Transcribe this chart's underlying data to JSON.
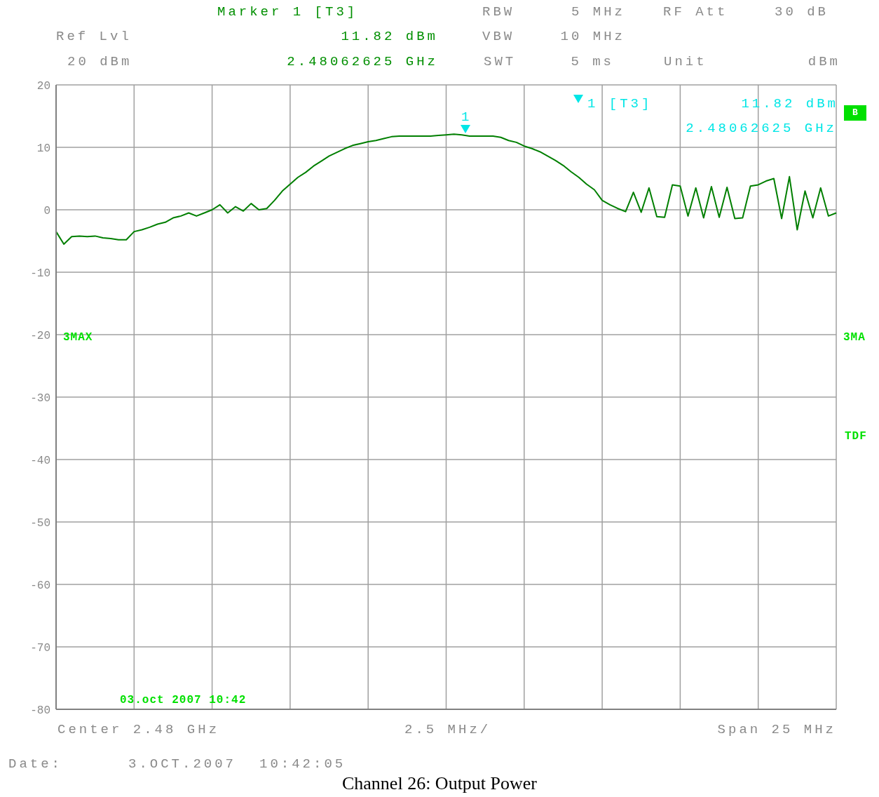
{
  "chart_data": {
    "type": "line",
    "title": "Channel 26: Output Power",
    "categories": [
      null,
      null,
      null,
      null,
      null,
      null,
      null,
      null,
      null,
      null,
      null,
      null,
      null,
      null,
      null,
      null,
      null,
      null,
      null,
      null,
      null,
      null,
      null,
      null,
      null,
      null,
      null,
      null,
      null,
      null,
      null,
      null,
      null,
      null,
      null,
      null,
      null,
      null,
      null,
      null,
      null,
      null,
      null,
      null,
      null,
      null,
      null,
      null,
      null,
      null,
      null,
      null,
      null,
      null,
      null,
      null,
      null,
      null,
      null,
      null,
      null,
      null,
      null,
      null,
      null,
      null,
      null,
      null,
      null,
      null,
      null,
      null,
      null,
      null,
      null,
      null,
      null,
      null,
      null,
      null,
      null,
      null,
      null,
      null,
      null,
      null,
      null,
      null,
      null,
      null,
      null,
      null,
      null,
      null,
      null,
      null,
      null,
      null,
      null,
      null,
      null
    ],
    "series": [
      {
        "color": "#007f00",
        "values": [
          -3.5,
          -5.5,
          -4.3,
          -4.2,
          -4.3,
          -4.2,
          -4.5,
          -4.6,
          -4.8,
          -4.8,
          -3.5,
          -3.2,
          -2.8,
          -2.3,
          -2,
          -1.3,
          -1,
          -0.5,
          -1,
          -0.5,
          0,
          0.8,
          -0.5,
          0.5,
          -0.2,
          1,
          0,
          0.2,
          1.5,
          3,
          4.1,
          5.2,
          6,
          7,
          7.8,
          8.6,
          9.2,
          9.8,
          10.3,
          10.6,
          10.9,
          11.1,
          11.4,
          11.7,
          11.8,
          11.8,
          11.8,
          11.8,
          11.8,
          11.9,
          12,
          12.1,
          12,
          11.8,
          11.8,
          11.8,
          11.8,
          11.6,
          11.1,
          10.8,
          10.2,
          9.8,
          9.3,
          8.6,
          7.9,
          7.1,
          6.1,
          5.2,
          4.1,
          3.2,
          1.5,
          0.8,
          0.2,
          -0.3,
          2.8,
          -0.4,
          3.5,
          -1.1,
          -1.2,
          4,
          3.8,
          -1,
          3.5,
          -1.3,
          3.7,
          -1.2,
          3.6,
          -1.4,
          -1.3,
          3.8,
          4,
          4.6,
          5,
          -1.4,
          5.3,
          -3.2,
          3,
          -1.3,
          3.5,
          -1,
          -0.5
        ]
      }
    ],
    "ylim": [
      -80,
      20
    ],
    "yticks": [
      -80,
      -70,
      -60,
      -50,
      -40,
      -30,
      -20,
      -10,
      0,
      10,
      20
    ],
    "tick_labels": "y",
    "grid": true,
    "marker": "none",
    "line_style": "solid",
    "annotations": [
      "Marker 1 [T3]",
      "Ref Lvl",
      "11.82 dBm",
      "20 dBm",
      "2.48062625 GHz",
      "RBW",
      "5 MHz",
      "VBW",
      "10 MHz",
      "SWT",
      "5 ms",
      "RF Att",
      "30 dB",
      "Unit",
      "dBm",
      "1 [T3]",
      "11.82 dBm",
      "2.48062625 GHz",
      "B",
      "3MAX",
      "3MA",
      "TDF",
      "03.oct 2007 10:42",
      "Center 2.48 GHz",
      "2.5 MHz/",
      "Span 25 MHz",
      "Date:",
      "3.OCT.2007",
      "10:42:05",
      "1"
    ]
  }
}
